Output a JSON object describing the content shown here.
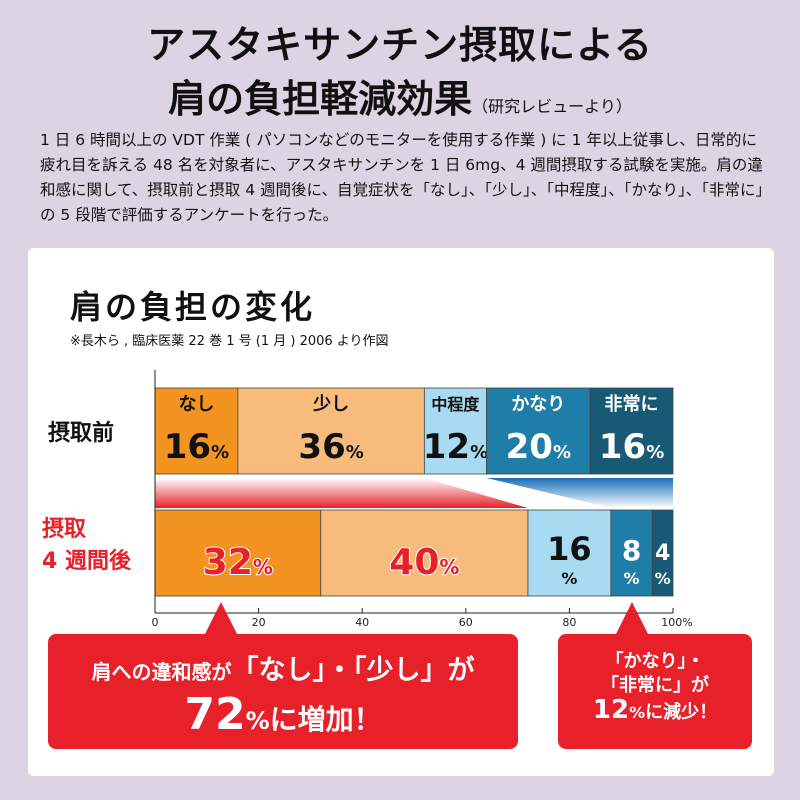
{
  "title_line1": "アスタキサンチン摂取による",
  "title_line2": "肩の負担軽減効果",
  "title_note": "（研究レビューより）",
  "description": "1 日 6 時間以上の VDT 作業 ( パソコンなどのモニターを使用する作業 ) に 1 年以上従事し、日常的に疲れ目を訴える 48 名を対象者に、アスタキサンチンを 1 日 6mg、4 週間摂取する試験を実施。肩の違和感に関して、摂取前と摂取 4 週間後に、自覚症状を「なし」、「少し」、「中程度」、「かなり」、「非常に」の 5 段階で評価するアンケートを行った。",
  "chart_data": {
    "type": "bar",
    "orientation": "horizontal-stacked-100",
    "title": "肩の負担の変化",
    "source": "※長木ら , 臨床医薬 22 巻 1 号 (1 月 ) 2006 より作図",
    "categories": [
      "なし",
      "少し",
      "中程度",
      "かなり",
      "非常に"
    ],
    "colors": [
      "#f39320",
      "#f7bb7b",
      "#a8dbf1",
      "#1f7ea8",
      "#185a75"
    ],
    "rows": [
      {
        "label": "摂取前",
        "values": [
          16,
          36,
          12,
          20,
          16
        ]
      },
      {
        "label_line1": "摂取",
        "label_line2": "4 週間後",
        "values": [
          32,
          40,
          16,
          8,
          4
        ]
      }
    ],
    "xlim": [
      0,
      100
    ],
    "xticks": [
      "0",
      "20",
      "40",
      "60",
      "80",
      "100%"
    ],
    "unit": "%"
  },
  "callout_left": {
    "line1a": "肩への違和感が",
    "line1b": "「なし」・「少し」が",
    "value": "72",
    "unit": "%",
    "suffix": "に増加！"
  },
  "callout_right": {
    "line1": "「かなり」・",
    "line2": "「非常に」が",
    "value": "12",
    "unit": "%",
    "suffix": "に減少！"
  }
}
